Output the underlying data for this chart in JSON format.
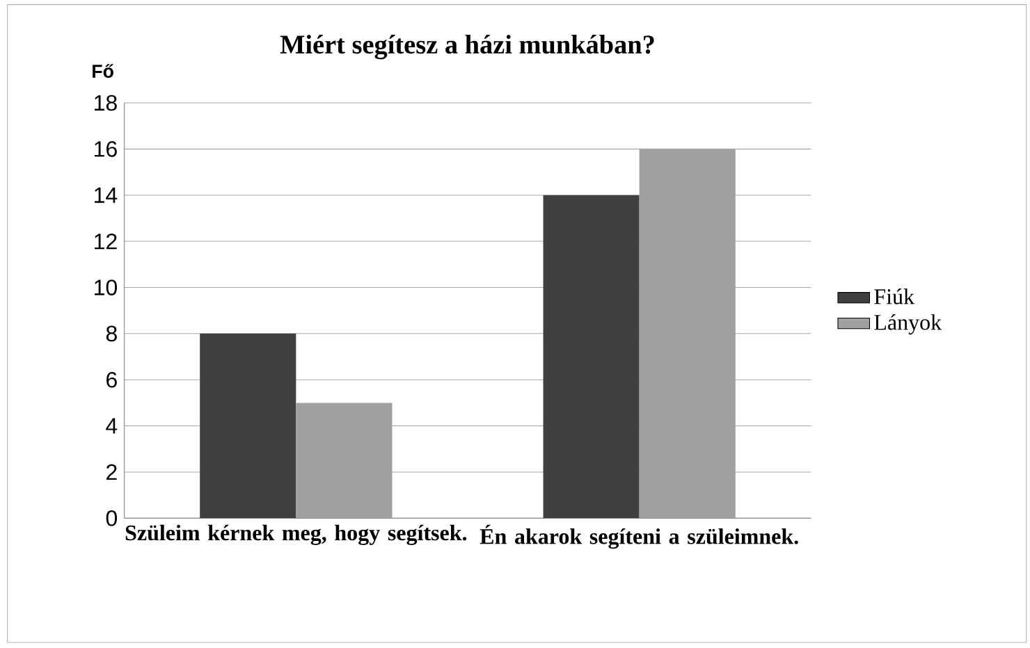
{
  "chart_data": {
    "type": "bar",
    "title": "Miért segítesz a házi munkában?",
    "ylabel": "Fő",
    "categories": [
      "Szüleim kérnek meg, hogy segítsek.",
      "Én akarok segíteni a szüleimnek."
    ],
    "series": [
      {
        "name": "Fiúk",
        "color": "#404040",
        "values": [
          8,
          14
        ]
      },
      {
        "name": "Lányok",
        "color": "#a0a0a0",
        "values": [
          5,
          16
        ]
      }
    ],
    "ylim": [
      0,
      18
    ],
    "yticks": [
      0,
      2,
      4,
      6,
      8,
      10,
      12,
      14,
      16,
      18
    ],
    "grid": "y",
    "legend": "right"
  }
}
